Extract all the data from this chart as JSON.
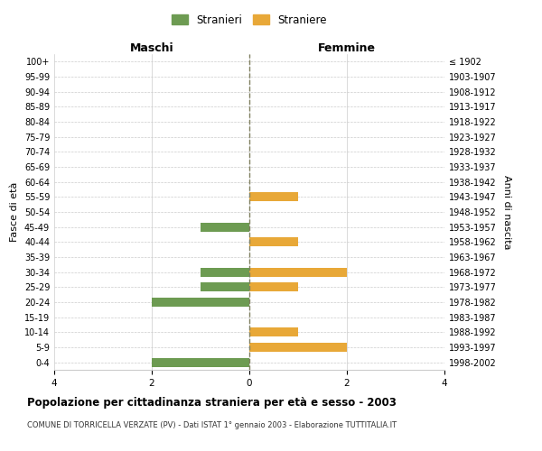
{
  "age_groups": [
    "0-4",
    "5-9",
    "10-14",
    "15-19",
    "20-24",
    "25-29",
    "30-34",
    "35-39",
    "40-44",
    "45-49",
    "50-54",
    "55-59",
    "60-64",
    "65-69",
    "70-74",
    "75-79",
    "80-84",
    "85-89",
    "90-94",
    "95-99",
    "100+"
  ],
  "birth_years": [
    "1998-2002",
    "1993-1997",
    "1988-1992",
    "1983-1987",
    "1978-1982",
    "1973-1977",
    "1968-1972",
    "1963-1967",
    "1958-1962",
    "1953-1957",
    "1948-1952",
    "1943-1947",
    "1938-1942",
    "1933-1937",
    "1928-1932",
    "1923-1927",
    "1918-1922",
    "1913-1917",
    "1908-1912",
    "1903-1907",
    "≤ 1902"
  ],
  "maschi": [
    2,
    0,
    0,
    0,
    2,
    1,
    1,
    0,
    0,
    1,
    0,
    0,
    0,
    0,
    0,
    0,
    0,
    0,
    0,
    0,
    0
  ],
  "femmine": [
    0,
    2,
    1,
    0,
    0,
    1,
    2,
    0,
    1,
    0,
    0,
    1,
    0,
    0,
    0,
    0,
    0,
    0,
    0,
    0,
    0
  ],
  "color_maschi": "#6d9b52",
  "color_femmine": "#e8a838",
  "title": "Popolazione per cittadinanza straniera per età e sesso - 2003",
  "subtitle": "COMUNE DI TORRICELLA VERZATE (PV) - Dati ISTAT 1° gennaio 2003 - Elaborazione TUTTITALIA.IT",
  "ylabel_left": "Fasce di età",
  "ylabel_right": "Anni di nascita",
  "xlabel_left": "Maschi",
  "xlabel_right": "Femmine",
  "legend_stranieri": "Stranieri",
  "legend_straniere": "Straniere",
  "xlim": 4,
  "background_color": "#ffffff",
  "grid_color": "#cccccc",
  "dashed_line_color": "#808060"
}
